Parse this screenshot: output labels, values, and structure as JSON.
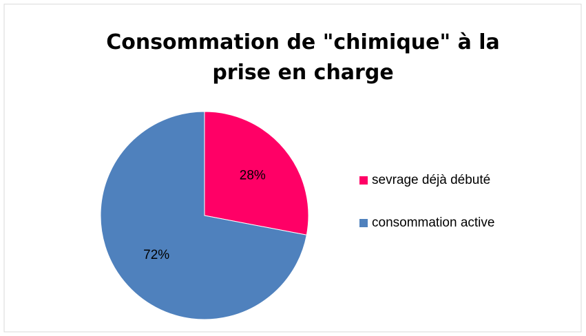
{
  "chart_data": {
    "type": "pie",
    "title": "Consommation de \"chimique\" à la prise en charge",
    "categories": [
      "sevrage déjà débuté",
      "consommation active"
    ],
    "values": [
      28,
      72
    ],
    "value_labels": [
      "28%",
      "72%"
    ],
    "colors": [
      "#ff0066",
      "#4f81bd"
    ],
    "legend": "right"
  }
}
